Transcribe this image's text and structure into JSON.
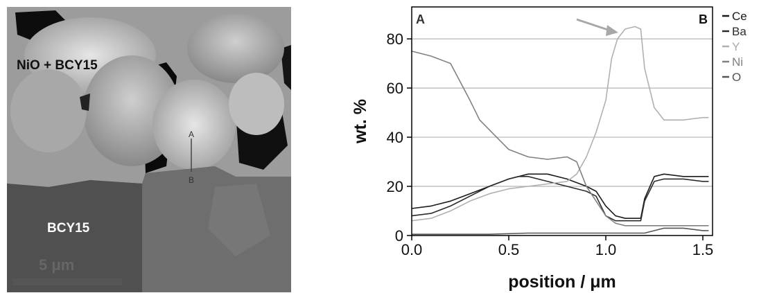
{
  "micrograph": {
    "label_top": "NiO + BCY15",
    "label_bottom": "BCY15",
    "scalebar_label": "5 μm",
    "marker_a": "A",
    "marker_b": "B"
  },
  "chart_data": {
    "type": "line",
    "title": "",
    "xlabel": "position / μm",
    "ylabel": "wt. %",
    "xlim": [
      0,
      1.55
    ],
    "ylim": [
      0,
      93
    ],
    "xticks": [
      0.0,
      0.5,
      1.0,
      1.5
    ],
    "xtick_labels": [
      "0.0",
      "0.5",
      "1.0",
      "1.5"
    ],
    "yticks": [
      0,
      20,
      40,
      60,
      80
    ],
    "yticks_labels": [
      "0",
      "20",
      "40",
      "60",
      "80"
    ],
    "grid": "horizontal",
    "corner_labels": {
      "left": "A",
      "right": "B"
    },
    "legend_position": "right",
    "series": [
      {
        "name": "Ce",
        "color": "#1a1a1a",
        "x": [
          0,
          0.1,
          0.2,
          0.3,
          0.4,
          0.5,
          0.6,
          0.7,
          0.8,
          0.9,
          0.95,
          1.0,
          1.05,
          1.1,
          1.15,
          1.18,
          1.2,
          1.25,
          1.3,
          1.4,
          1.5,
          1.53
        ],
        "y": [
          11,
          12,
          14,
          17,
          20,
          23,
          25,
          25,
          23,
          20,
          18,
          12,
          8,
          7,
          7,
          7,
          15,
          24,
          25,
          24,
          24,
          24
        ]
      },
      {
        "name": "Ba",
        "color": "#2b2b2b",
        "x": [
          0,
          0.1,
          0.2,
          0.3,
          0.4,
          0.5,
          0.55,
          0.6,
          0.7,
          0.8,
          0.9,
          0.95,
          1.0,
          1.05,
          1.1,
          1.15,
          1.18,
          1.2,
          1.25,
          1.3,
          1.4,
          1.5,
          1.53
        ],
        "y": [
          8,
          9,
          12,
          16,
          20,
          23,
          24,
          24,
          22,
          20,
          18,
          16,
          8,
          6,
          6,
          6,
          6,
          14,
          22,
          23,
          23,
          22,
          22
        ]
      },
      {
        "name": "Y",
        "color": "#b0b0b0",
        "x": [
          0,
          0.1,
          0.2,
          0.3,
          0.4,
          0.5,
          0.6,
          0.7,
          0.8,
          0.85,
          0.9,
          0.95,
          1.0,
          1.03,
          1.06,
          1.1,
          1.15,
          1.18,
          1.2,
          1.25,
          1.3,
          1.4,
          1.5,
          1.53
        ],
        "y": [
          6,
          7,
          10,
          14,
          17,
          19,
          20,
          21,
          22,
          25,
          32,
          42,
          55,
          72,
          80,
          84,
          85,
          84,
          68,
          52,
          47,
          47,
          48,
          48
        ]
      },
      {
        "name": "Ni",
        "color": "#808080",
        "x": [
          0,
          0.1,
          0.2,
          0.3,
          0.35,
          0.4,
          0.5,
          0.6,
          0.7,
          0.8,
          0.85,
          0.9,
          0.95,
          1.0,
          1.05,
          1.1,
          1.15,
          1.2,
          1.25,
          1.3,
          1.4,
          1.5,
          1.53
        ],
        "y": [
          75,
          73,
          70,
          55,
          47,
          43,
          35,
          32,
          31,
          32,
          30,
          20,
          14,
          8,
          5,
          4,
          4,
          4,
          4,
          4,
          4,
          4,
          4
        ]
      },
      {
        "name": "O",
        "color": "#555555",
        "x": [
          0,
          0.2,
          0.4,
          0.6,
          0.8,
          1.0,
          1.1,
          1.2,
          1.3,
          1.4,
          1.5,
          1.53
        ],
        "y": [
          0.5,
          0.5,
          0.5,
          1,
          1,
          1,
          1,
          1,
          3,
          3,
          2,
          2
        ]
      }
    ],
    "annotations": [
      {
        "type": "arrow",
        "color": "#a0a0a0",
        "points_to": "Y peak"
      }
    ]
  }
}
